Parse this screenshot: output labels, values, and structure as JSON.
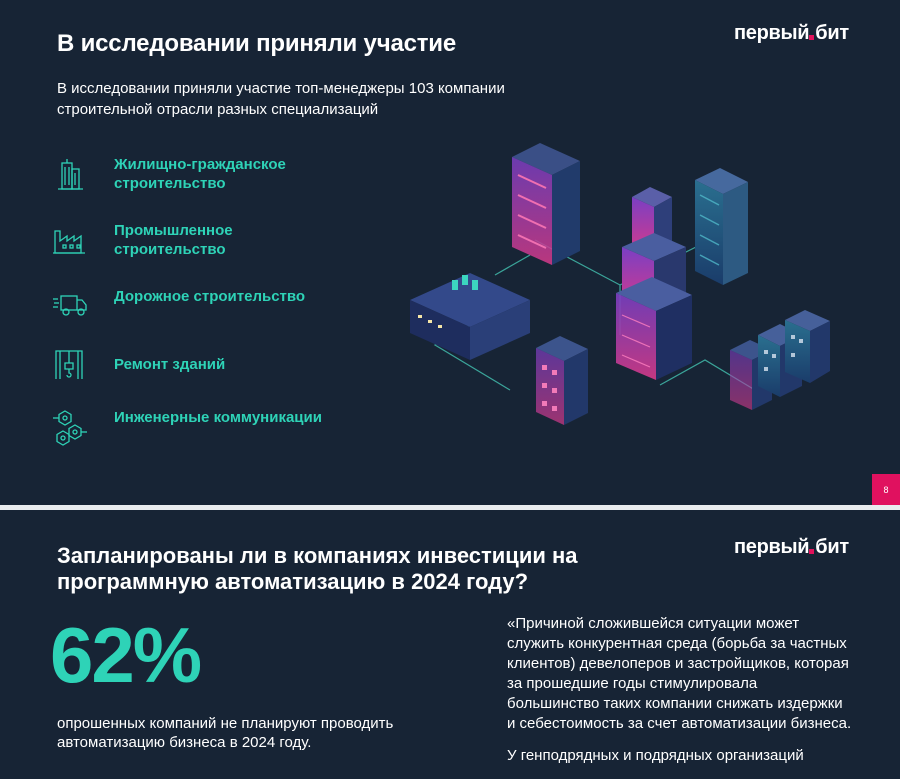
{
  "slide1": {
    "title": "В исследовании приняли участие",
    "logo": {
      "left": "первый",
      "right": "бит"
    },
    "subtitle": "В исследовании приняли участие топ-менеджеры 103 компании строительной отрасли разных специализаций",
    "categories": [
      {
        "icon": "residential-building-icon",
        "label": "Жилищно-гражданское строительство"
      },
      {
        "icon": "factory-icon",
        "label": "Промышленное строительство"
      },
      {
        "icon": "truck-icon",
        "label": "Дорожное строительство"
      },
      {
        "icon": "repair-crane-icon",
        "label": "Ремонт зданий"
      },
      {
        "icon": "engineering-network-icon",
        "label": "Инженерные коммуникации"
      }
    ],
    "page_number": "8"
  },
  "slide2": {
    "title": "Запланированы ли в компаниях инвестиции на программную автоматизацию в 2024 году?",
    "logo": {
      "left": "первый",
      "right": "бит"
    },
    "big_value": "62%",
    "big_caption": "опрошенных компаний не планируют проводить автоматизацию бизнеса в 2024 году.",
    "quote_p1": "«Причиной сложившейся ситуации может служить конкурентная среда (борьба за частных клиентов) девелоперов и застройщиков, которая за прошедшие годы стимулировала большинство таких компании снижать издержки и себестоимость за счет автоматизации бизнеса.",
    "quote_p2": "У генподрядных и подрядных организаций"
  },
  "colors": {
    "background": "#172435",
    "accent": "#2ed3b7",
    "brand": "#e0115f"
  }
}
